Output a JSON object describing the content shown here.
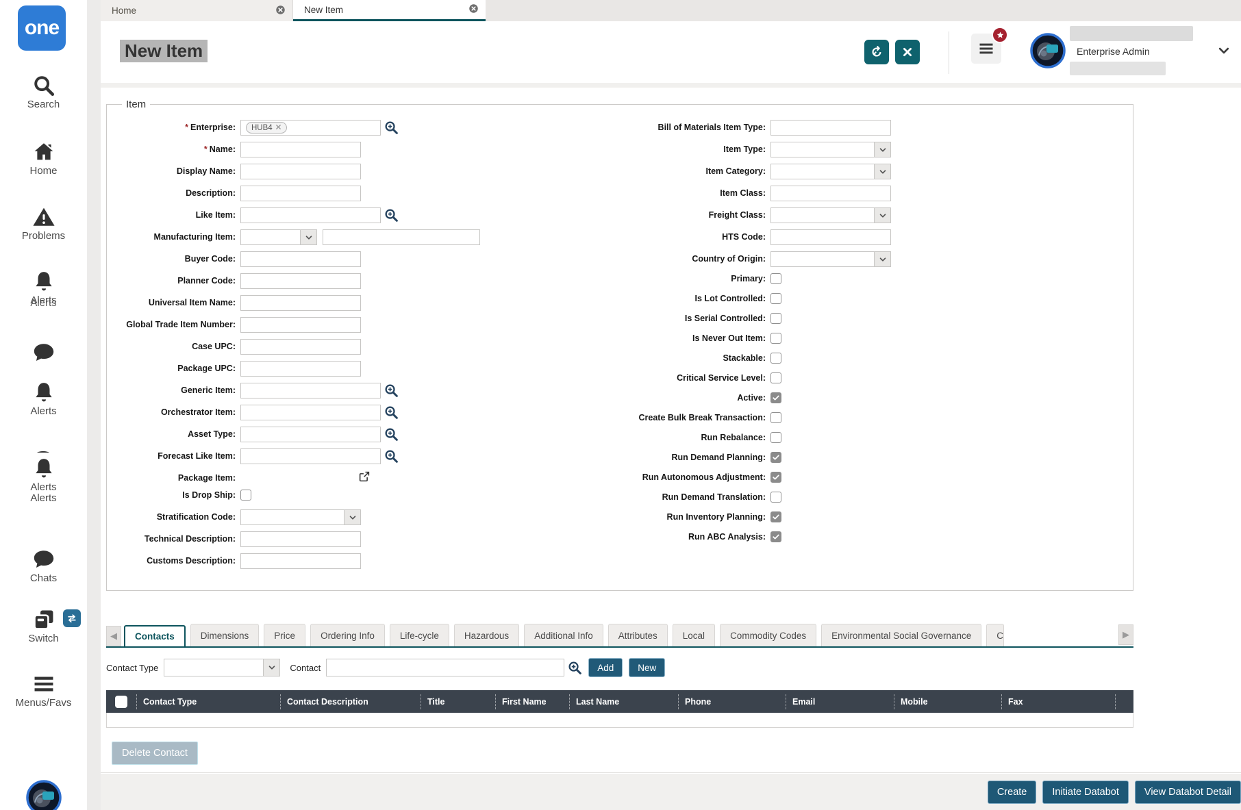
{
  "logo": {
    "text": "one"
  },
  "window_tabs": {
    "home": "Home",
    "active": "New Item"
  },
  "header": {
    "title": "New Item",
    "user_role": "Enterprise Admin"
  },
  "sidebar": {
    "items": [
      {
        "label": "Search"
      },
      {
        "label": "Home"
      },
      {
        "label": "Problems"
      },
      {
        "label": "Alerts",
        "label2": "Alerts",
        "overlap": true
      },
      {
        "label": ""
      },
      {
        "label": "Alerts"
      },
      {
        "label": "Alerts",
        "label2": "Alerts"
      },
      {
        "label": "Chats"
      },
      {
        "label": "Switch"
      },
      {
        "label": "Menus/Favs"
      }
    ]
  },
  "form": {
    "legend": "Item",
    "left": [
      {
        "label": "Enterprise:",
        "required": true,
        "control": "chip-zoom",
        "chip": "HUB4"
      },
      {
        "label": "Name:",
        "required": true,
        "control": "text"
      },
      {
        "label": "Display Name:",
        "control": "text"
      },
      {
        "label": "Description:",
        "control": "text"
      },
      {
        "label": "Like Item:",
        "control": "text-zoom"
      },
      {
        "label": "Manufacturing Item:",
        "control": "select-text"
      },
      {
        "label": "Buyer Code:",
        "control": "text"
      },
      {
        "label": "Planner Code:",
        "control": "text"
      },
      {
        "label": "Universal Item Name:",
        "control": "text"
      },
      {
        "label": "Global Trade Item Number:",
        "control": "text"
      },
      {
        "label": "Case UPC:",
        "control": "text"
      },
      {
        "label": "Package UPC:",
        "control": "text"
      },
      {
        "label": "Generic Item:",
        "control": "text-zoom"
      },
      {
        "label": "Orchestrator Item:",
        "control": "text-zoom"
      },
      {
        "label": "Asset Type:",
        "control": "text-zoom"
      },
      {
        "label": "Forecast Like Item:",
        "control": "text-zoom"
      },
      {
        "label": "Package Item:",
        "control": "icon-only"
      },
      {
        "label": "Is Drop Ship:",
        "control": "checkbox",
        "checked": false
      },
      {
        "label": "Stratification Code:",
        "control": "select"
      },
      {
        "label": "Technical Description:",
        "control": "text"
      },
      {
        "label": "Customs Description:",
        "control": "text"
      }
    ],
    "right": [
      {
        "label": "Bill of Materials Item Type:",
        "control": "text"
      },
      {
        "label": "Item Type:",
        "control": "select"
      },
      {
        "label": "Item Category:",
        "control": "select"
      },
      {
        "label": "Item Class:",
        "control": "text"
      },
      {
        "label": "Freight Class:",
        "control": "select"
      },
      {
        "label": "HTS Code:",
        "control": "text"
      },
      {
        "label": "Country of Origin:",
        "control": "select"
      },
      {
        "label": "Primary:",
        "control": "checkbox",
        "checked": false
      },
      {
        "label": "Is Lot Controlled:",
        "control": "checkbox",
        "checked": false
      },
      {
        "label": "Is Serial Controlled:",
        "control": "checkbox",
        "checked": false
      },
      {
        "label": "Is Never Out Item:",
        "control": "checkbox",
        "checked": false
      },
      {
        "label": "Stackable:",
        "control": "checkbox",
        "checked": false
      },
      {
        "label": "Critical Service Level:",
        "control": "checkbox",
        "checked": false
      },
      {
        "label": "Active:",
        "control": "checkbox",
        "checked": true
      },
      {
        "label": "Create Bulk Break Transaction:",
        "control": "checkbox",
        "checked": false
      },
      {
        "label": "Run Rebalance:",
        "control": "checkbox",
        "checked": false
      },
      {
        "label": "Run Demand Planning:",
        "control": "checkbox",
        "checked": true
      },
      {
        "label": "Run Autonomous Adjustment:",
        "control": "checkbox",
        "checked": true
      },
      {
        "label": "Run Demand Translation:",
        "control": "checkbox",
        "checked": false
      },
      {
        "label": "Run Inventory Planning:",
        "control": "checkbox",
        "checked": true
      },
      {
        "label": "Run ABC Analysis:",
        "control": "checkbox",
        "checked": true
      }
    ]
  },
  "bottom_tabs": {
    "items": [
      {
        "label": "Contacts",
        "active": true
      },
      {
        "label": "Dimensions"
      },
      {
        "label": "Price"
      },
      {
        "label": "Ordering Info"
      },
      {
        "label": "Life-cycle"
      },
      {
        "label": "Hazardous"
      },
      {
        "label": "Additional Info"
      },
      {
        "label": "Attributes"
      },
      {
        "label": "Local"
      },
      {
        "label": "Commodity Codes"
      },
      {
        "label": "Environmental Social Governance"
      },
      {
        "label": "C",
        "truncated": true
      }
    ]
  },
  "contact_toolbar": {
    "type_label": "Contact Type",
    "contact_label": "Contact",
    "add": "Add",
    "new_btn": "New"
  },
  "table": {
    "columns": [
      "",
      "Contact Type",
      "Contact Description",
      "Title",
      "First Name",
      "Last Name",
      "Phone",
      "Email",
      "Mobile",
      "Fax",
      ""
    ]
  },
  "actions": {
    "delete_contact": "Delete Contact",
    "create": "Create",
    "initiate_databot": "Initiate Databot",
    "view_databot_detail": "View Databot Detail"
  },
  "colors": {
    "teal": "#0d545d",
    "button_navy": "#1e5876",
    "header_dark": "#3b434d",
    "logo_blue": "#2e7cd6",
    "badge_red": "#a5212f"
  }
}
